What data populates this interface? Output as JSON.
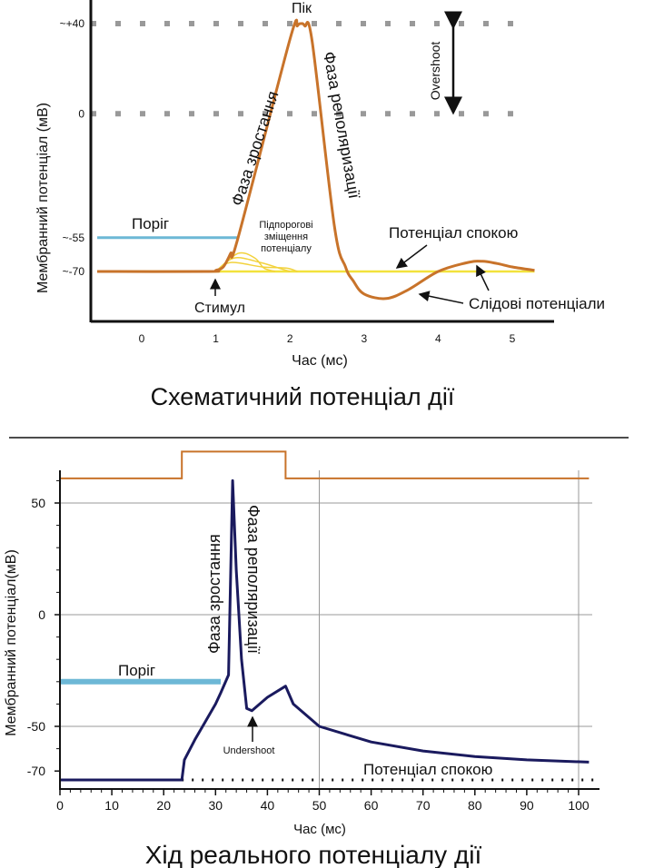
{
  "chart_data": [
    {
      "type": "line",
      "title": "Схематичний потенціал дії",
      "xlabel": "Час (мс)",
      "ylabel": "Мембранний потенціал (мВ)",
      "xlim": [
        -0.6,
        5.7
      ],
      "ylim": [
        -83,
        48
      ],
      "x_ticks": [
        "0",
        "1",
        "2",
        "3",
        "4",
        "5"
      ],
      "y_ticks": [
        "~+40",
        "0",
        "~-55",
        "~-70"
      ],
      "y_tick_values": [
        40,
        0,
        -55,
        -70
      ],
      "grid": false,
      "series": [
        {
          "name": "",
          "color": "#c8732a",
          "x": [
            -0.6,
            0.9,
            1.0,
            1.1,
            1.2,
            1.3,
            2.0,
            2.1,
            2.15,
            2.2,
            2.3,
            2.6,
            2.75,
            2.85,
            3.0,
            3.3,
            3.6,
            4.0,
            4.4,
            4.6,
            4.8,
            5.0,
            5.3
          ],
          "y": [
            -70,
            -70,
            -69.5,
            -68,
            -62,
            -55,
            33,
            39,
            40,
            39,
            32,
            -50,
            -68,
            -74,
            -80,
            -82,
            -78,
            -70,
            -66,
            -65.5,
            -66.5,
            -68,
            -69.5
          ]
        }
      ],
      "reference_lines": [
        {
          "label": "Поріг",
          "y": -55,
          "x": [
            -0.6,
            1.3
          ],
          "color": "#6db8d6"
        },
        {
          "label": "Потенціал спокою",
          "y": -70,
          "x": [
            -0.6,
            5.3
          ],
          "color": "#f2e23c"
        }
      ],
      "dotted_lines": [
        40,
        0
      ],
      "annotations": {
        "peak": "Пік",
        "overshoot": "Overshoot",
        "rising_phase": "Фаза зростання",
        "repolarization_phase": "Фаза реполяризації",
        "subthreshold_line1": "Підпорогові",
        "subthreshold_line2": "зміщення",
        "subthreshold_line3": "потенціалу",
        "stimulus": "Стимул",
        "resting_potential": "Потенціал спокою",
        "afterpotentials": "Слідові потенціали"
      }
    },
    {
      "type": "line",
      "title": "Хід реального потенціалу дії",
      "xlabel": "Час (мс)",
      "ylabel": "Мембранний потенціал(мВ)",
      "xlim": [
        0,
        104
      ],
      "ylim": [
        -75,
        65
      ],
      "x_ticks": [
        0,
        10,
        20,
        30,
        40,
        50,
        60,
        70,
        80,
        90,
        100
      ],
      "y_ticks": [
        50,
        0,
        -50,
        -70
      ],
      "grid": true,
      "series": [
        {
          "name": "",
          "color": "#1a1a5e",
          "x": [
            0,
            23.5,
            24,
            26,
            28,
            30,
            31,
            32.5,
            33.3,
            34,
            35,
            36,
            37,
            40,
            43.5,
            45,
            50,
            60,
            70,
            80,
            90,
            102
          ],
          "y": [
            -74,
            -74,
            -65,
            -56,
            -48,
            -40,
            -35,
            -27,
            60,
            20,
            -20,
            -42,
            -43,
            -37,
            -32,
            -40,
            -50,
            -57,
            -61,
            -63.5,
            -65,
            -66
          ]
        },
        {
          "name": "",
          "color": "#c8732a",
          "x": [
            0,
            23.5,
            23.5,
            43.5,
            43.5,
            102
          ],
          "y": [
            61,
            61,
            73,
            73,
            61,
            61
          ]
        }
      ],
      "reference_lines": [
        {
          "label": "Поріг",
          "y": -30,
          "x": [
            0,
            31
          ],
          "color": "#6db8d6"
        },
        {
          "label": "Потенціал спокою",
          "y": -74,
          "x": [
            23.5,
            104
          ],
          "style": "dotted"
        }
      ],
      "annotations": {
        "rising_phase": "Фаза зростання",
        "repolarization_phase": "Фаза реполяризації",
        "undershoot": "Undershoot",
        "resting_potential": "Потенціал спокою"
      }
    }
  ]
}
